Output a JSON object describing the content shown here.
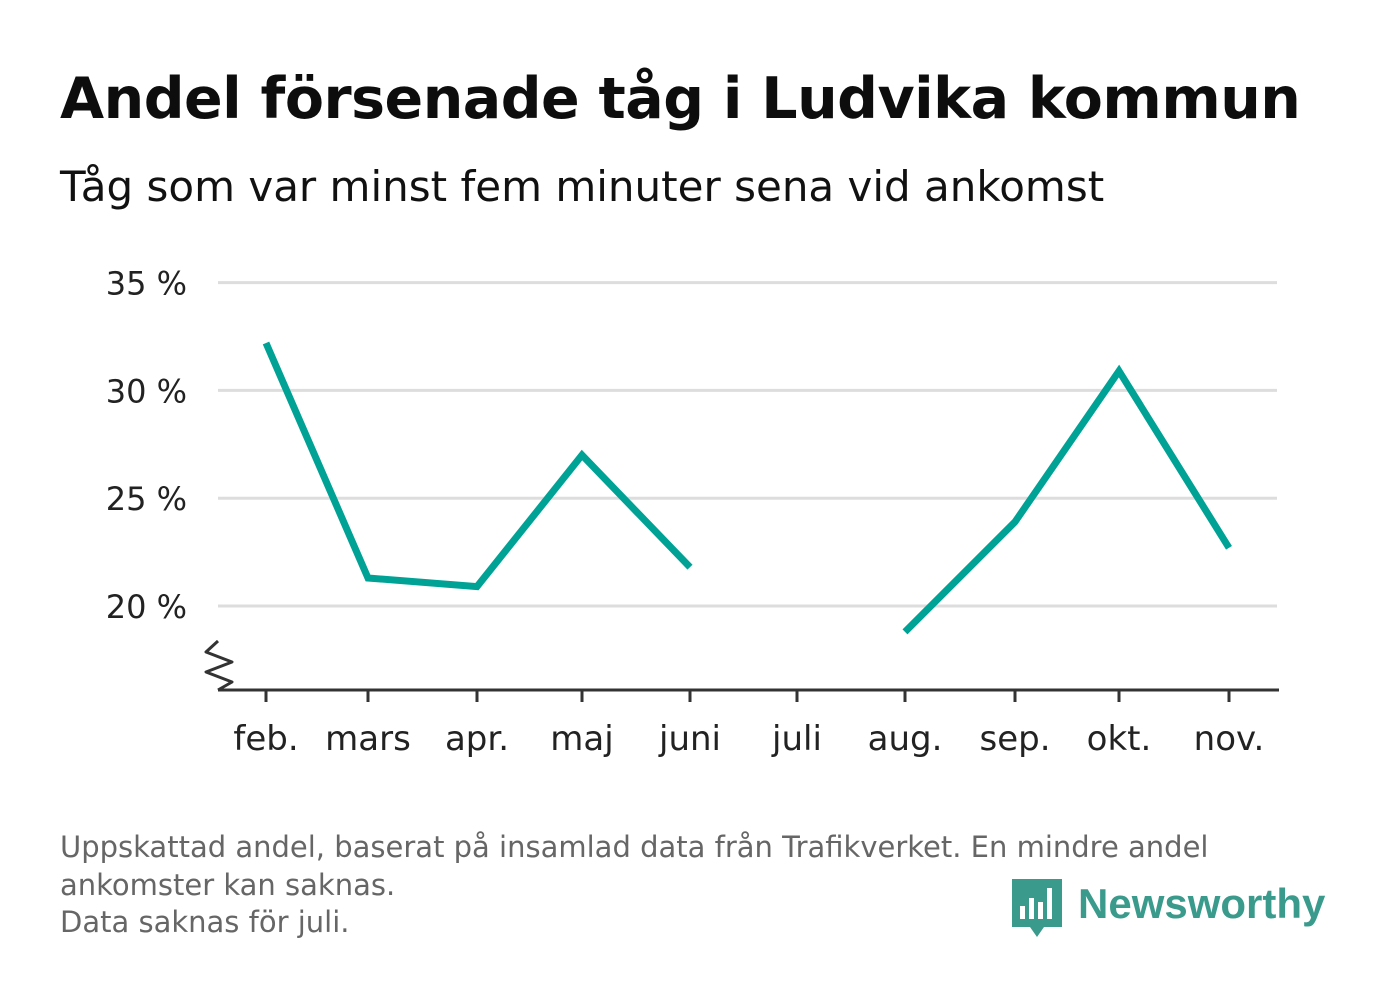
{
  "header": {
    "title": "Andel försenade tåg i Ludvika kommun",
    "subtitle": "Tåg som var minst fem minuter sena vid ankomst"
  },
  "footer": {
    "note_lines": [
      "Uppskattad andel, baserat på insamlad data från Trafikverket. En mindre andel",
      "ankomster kan saknas.",
      "Data saknas för juli."
    ],
    "brand": "Newsworthy",
    "brand_icon": "newsworthy-logo-icon"
  },
  "colors": {
    "line": "#00a296",
    "grid": "#dddddd",
    "axis": "#333333",
    "brand": "#3a9b8d",
    "note": "#666666"
  },
  "chart_data": {
    "type": "line",
    "title": "Andel försenade tåg i Ludvika kommun",
    "subtitle": "Tåg som var minst fem minuter sena vid ankomst",
    "xlabel": "",
    "ylabel": "",
    "categories": [
      "feb.",
      "mars",
      "apr.",
      "maj",
      "juni",
      "juli",
      "aug.",
      "sep.",
      "okt.",
      "nov."
    ],
    "series": [
      {
        "values": [
          32.2,
          21.3,
          20.9,
          27.0,
          21.8,
          null,
          18.8,
          23.9,
          30.9,
          22.7
        ]
      }
    ],
    "yticks": [
      20,
      25,
      30,
      35
    ],
    "ytick_labels": [
      "20 %",
      "25 %",
      "30 %",
      "35 %"
    ],
    "ylim": [
      16.3,
      35
    ],
    "y_axis_break": true,
    "grid": true,
    "legend": "none"
  }
}
